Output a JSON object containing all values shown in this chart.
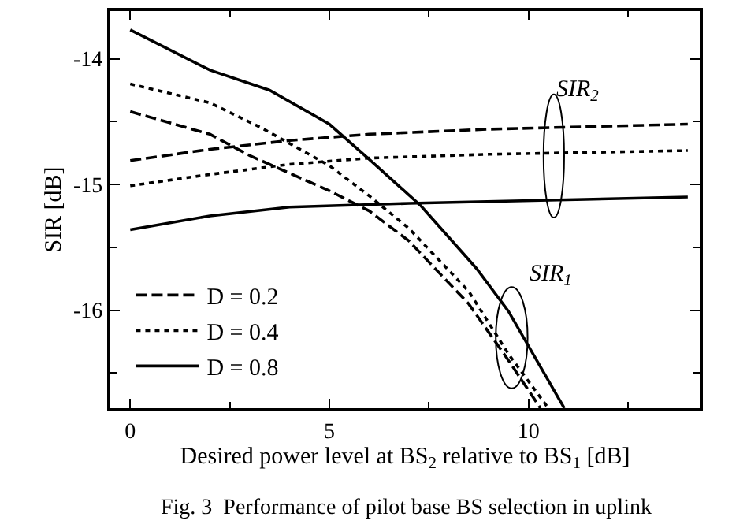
{
  "chart_data": {
    "type": "line",
    "xlabel": "Desired power level at BS$_{2}$ relative to BS$_{1}$ [dB]",
    "ylabel": "SIR [dB]",
    "xlim": [
      -0.5,
      14.3
    ],
    "ylim": [
      -16.78,
      -13.62
    ],
    "xticks": [
      0,
      5,
      10
    ],
    "yticks": [
      -16,
      -15,
      -14
    ],
    "legend": "bottom left",
    "marker": "none",
    "series": [
      {
        "name": "D = 0.2",
        "color": "#000000",
        "line_style": "dashed",
        "x": [
          0,
          2,
          3,
          5,
          6,
          7,
          8.5,
          9.5,
          10.3
        ],
        "values": [
          -14.42,
          -14.6,
          -14.77,
          -15.05,
          -15.21,
          -15.45,
          -15.95,
          -16.4,
          -16.78
        ]
      },
      {
        "name": "D = 0.4",
        "color": "#000000",
        "line_style": "dotted",
        "x": [
          0,
          2,
          3.3,
          5,
          6,
          7,
          8.5,
          9.5,
          10.5
        ],
        "values": [
          -14.2,
          -14.35,
          -14.55,
          -14.85,
          -15.09,
          -15.35,
          -15.85,
          -16.35,
          -16.78
        ]
      },
      {
        "name": "D = 0.8",
        "color": "#000000",
        "line_style": "solid",
        "x": [
          0,
          2,
          3.5,
          5,
          6,
          7.3,
          8.7,
          9.5,
          10.9
        ],
        "values": [
          -13.77,
          -14.09,
          -14.25,
          -14.52,
          -14.8,
          -15.17,
          -15.67,
          -16.01,
          -16.78
        ]
      },
      {
        "color": "#000000",
        "line_style": "dashed",
        "x": [
          0,
          2,
          4,
          6,
          9,
          14
        ],
        "values": [
          -14.81,
          -14.72,
          -14.65,
          -14.6,
          -14.56,
          -14.52
        ]
      },
      {
        "color": "#000000",
        "line_style": "dotted",
        "x": [
          0,
          2,
          4,
          6,
          9,
          14
        ],
        "values": [
          -15.01,
          -14.92,
          -14.84,
          -14.79,
          -14.76,
          -14.73
        ]
      },
      {
        "color": "#000000",
        "line_style": "solid",
        "x": [
          0,
          2,
          4,
          7,
          14
        ],
        "values": [
          -15.36,
          -15.25,
          -15.18,
          -15.15,
          -15.1
        ]
      }
    ],
    "annotations": [
      "SIR$_{2}$",
      "SIR$_{1}$",
      "Fig. 3  Performance of pilot base BS selection in uplink"
    ]
  }
}
